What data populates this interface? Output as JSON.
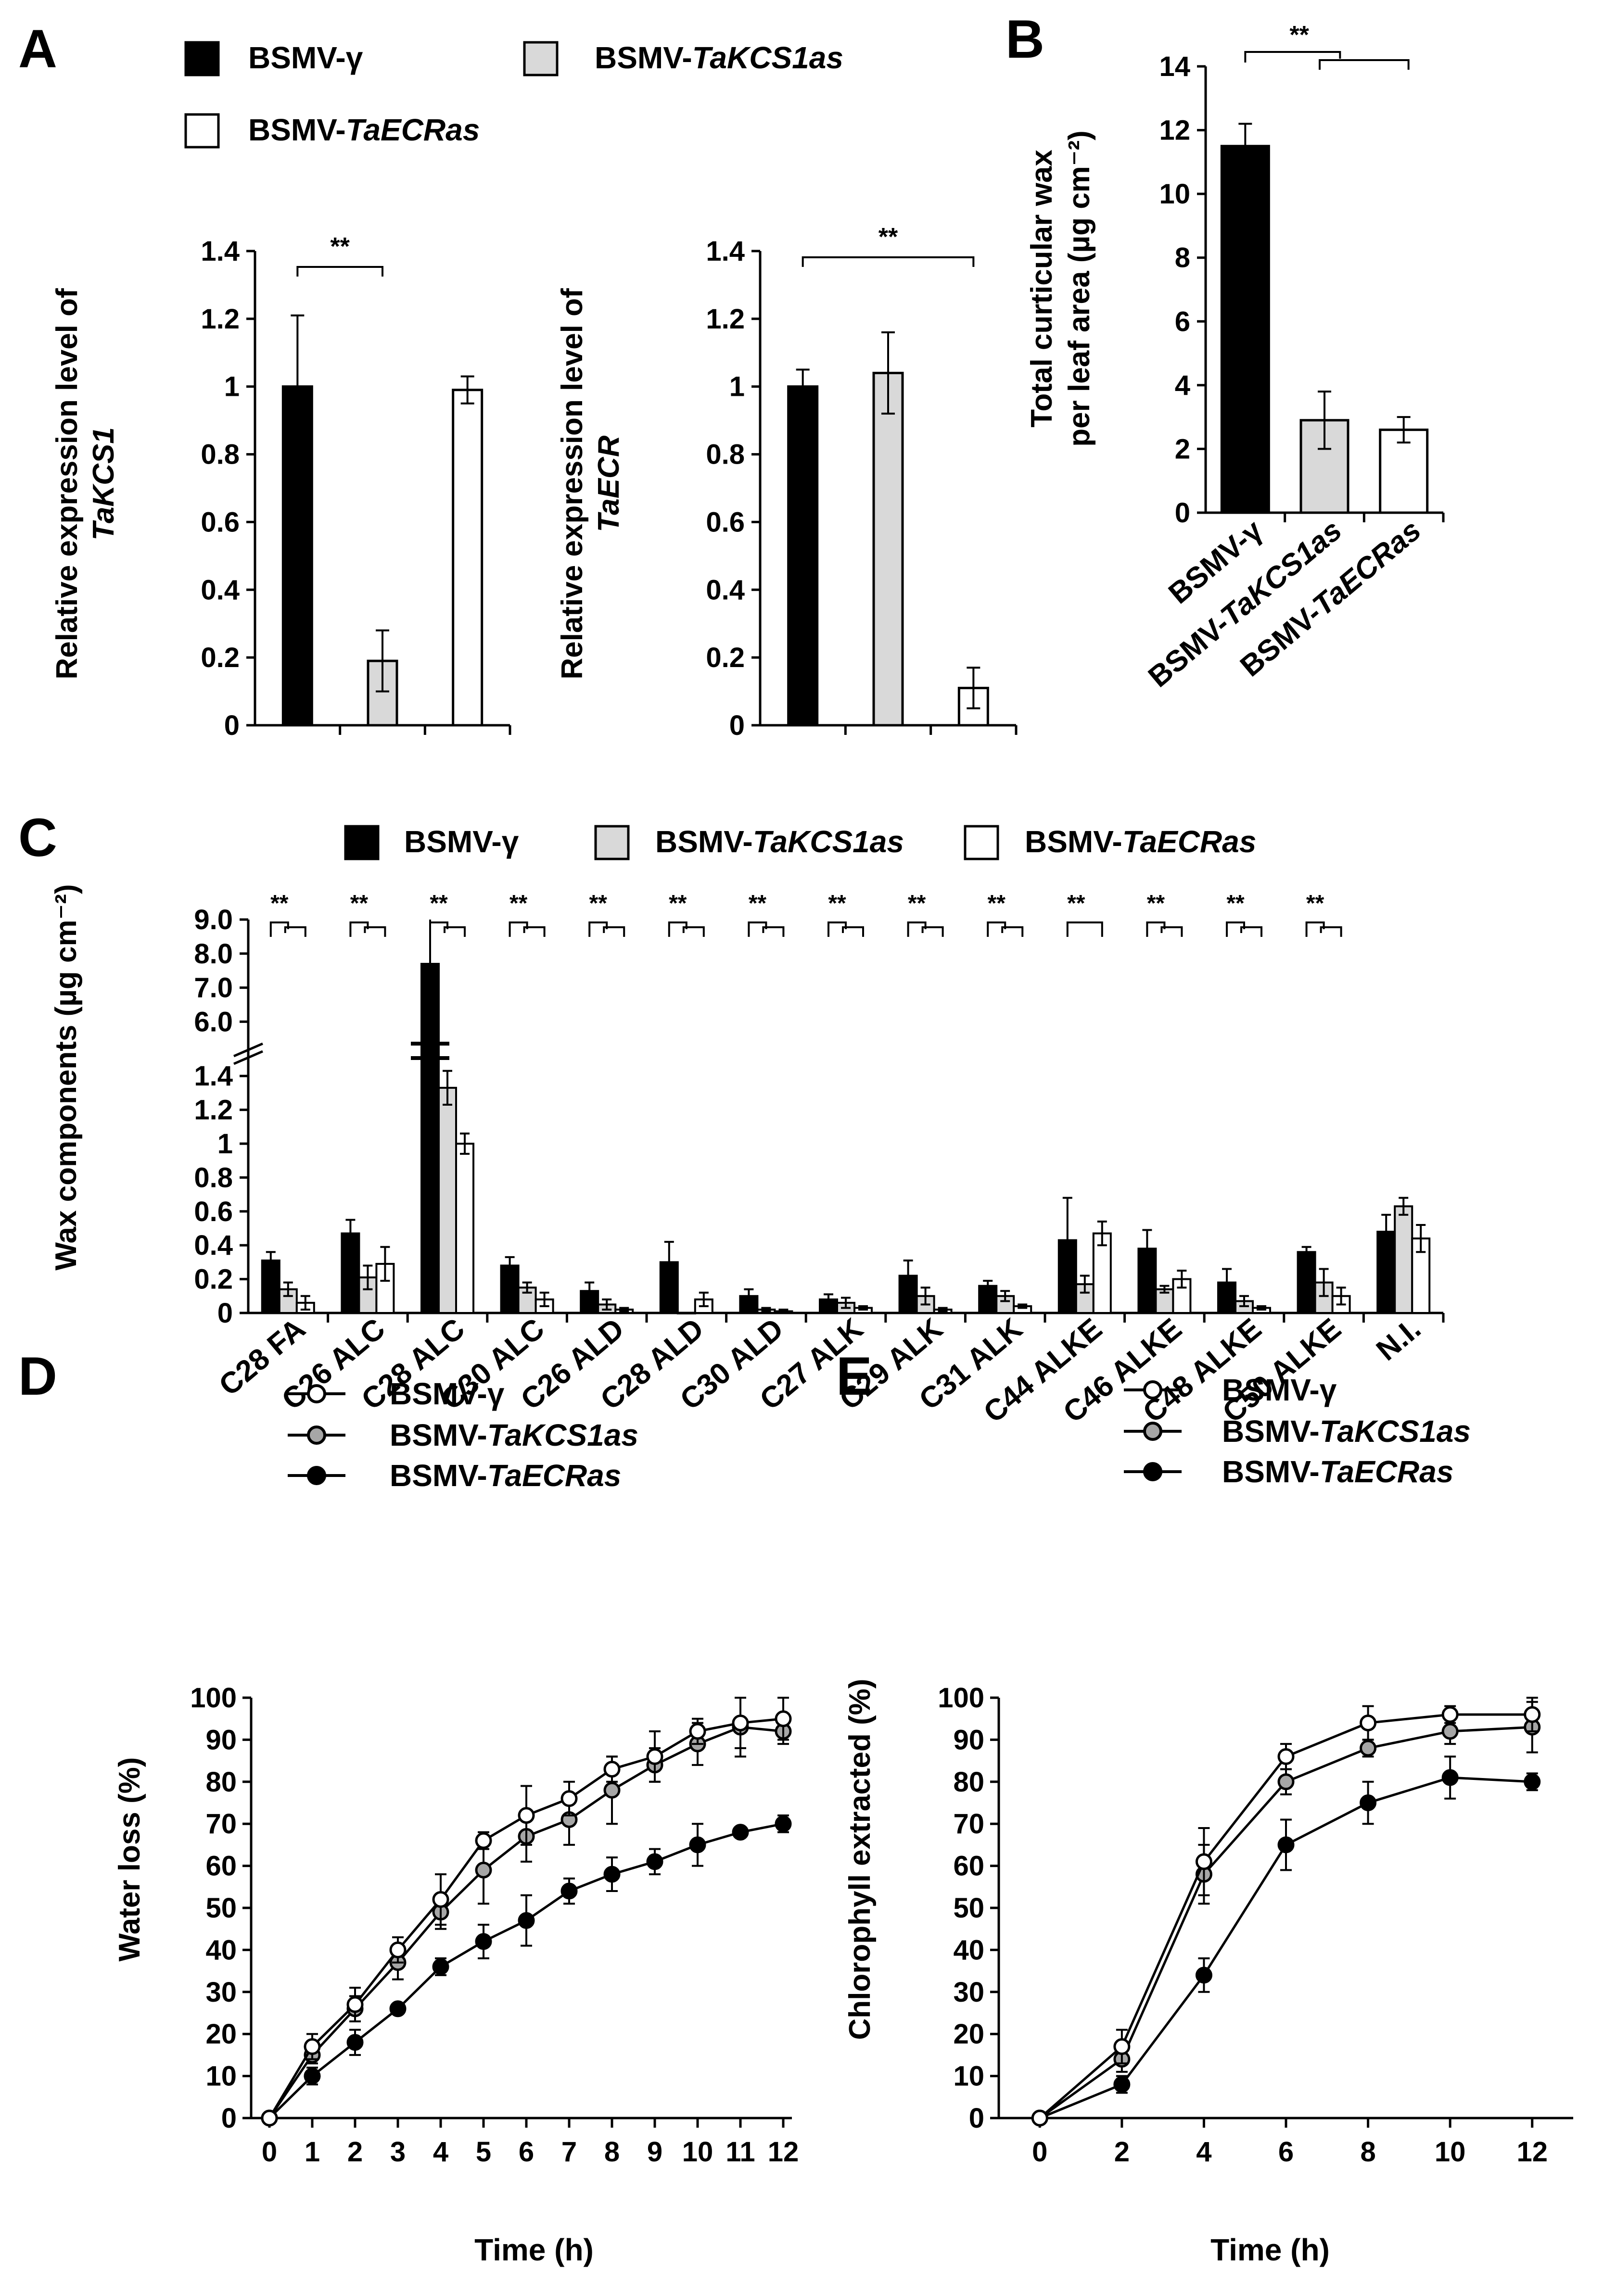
{
  "figure": {
    "panel_labels": {
      "A": "A",
      "B": "B",
      "C": "C",
      "D": "D",
      "E": "E"
    },
    "colors": {
      "black": "#000000",
      "gray": "#d9d9d9",
      "white": "#ffffff",
      "mid_gray": "#a6a6a6"
    },
    "legend_bar": {
      "gamma": {
        "prefix": "BSMV-",
        "name": "γ",
        "italic": false
      },
      "kcs": {
        "prefix": "BSMV-",
        "name": "TaKCS1as",
        "italic": true
      },
      "ecr": {
        "prefix": "BSMV-",
        "name": "TaECRas",
        "italic": true
      }
    },
    "significance": "**"
  },
  "chart_data": [
    {
      "id": "A1",
      "type": "bar",
      "title": "",
      "categories": [
        "BSMV-γ",
        "BSMV-TaKCS1as",
        "BSMV-TaECRas"
      ],
      "values": [
        1.0,
        0.19,
        0.99
      ],
      "errors": [
        0.21,
        0.09,
        0.04
      ],
      "ylabel_line1": "Relative expression level of",
      "ylabel_line2": "TaKCS1",
      "ylim": [
        0,
        1.4
      ],
      "yticks": [
        "0",
        "0.2",
        "0.4",
        "0.6",
        "0.8",
        "1",
        "1.2",
        "1.4"
      ],
      "significance": [
        {
          "from": 0,
          "to": 1,
          "label": "**"
        }
      ]
    },
    {
      "id": "A2",
      "type": "bar",
      "categories": [
        "BSMV-γ",
        "BSMV-TaKCS1as",
        "BSMV-TaECRas"
      ],
      "values": [
        1.0,
        1.04,
        0.11
      ],
      "errors": [
        0.05,
        0.12,
        0.06
      ],
      "ylabel_line1": "Relative expression level of",
      "ylabel_line2": "TaECR",
      "ylim": [
        0,
        1.4
      ],
      "yticks": [
        "0",
        "0.2",
        "0.4",
        "0.6",
        "0.8",
        "1",
        "1.2",
        "1.4"
      ],
      "significance": [
        {
          "from": 0,
          "to": 2,
          "label": "**"
        }
      ]
    },
    {
      "id": "B",
      "type": "bar",
      "categories": [
        "BSMV-γ",
        "BSMV-TaKCS1as",
        "BSMV-TaECRas"
      ],
      "xticklabels": [
        {
          "prefix": "BSMV-",
          "name": "γ",
          "italic": false
        },
        {
          "prefix": "BSMV-",
          "name": "TaKCS1as",
          "italic": true
        },
        {
          "prefix": "BSMV-",
          "name": "TaECRas",
          "italic": true
        }
      ],
      "values": [
        11.5,
        2.9,
        2.6
      ],
      "errors": [
        0.7,
        0.9,
        0.4
      ],
      "ylabel_line1": "Total curticular wax",
      "ylabel_line2": "per leaf area  (µg cm⁻²)",
      "ylim": [
        0,
        14
      ],
      "yticks": [
        "0",
        "2",
        "4",
        "6",
        "8",
        "10",
        "12",
        "14"
      ],
      "significance": "**"
    },
    {
      "id": "C",
      "type": "bar",
      "categories": [
        "C28 FA",
        "C26 ALC",
        "C28 ALC",
        "C30 ALC",
        "C26 ALD",
        "C28 ALD",
        "C30 ALD",
        "C27 ALK",
        "C29 ALK",
        "C31 ALK",
        "C44 ALKE",
        "C46 ALKE",
        "C48 ALKE",
        "C50 ALKE",
        "N.I."
      ],
      "series": [
        {
          "name": "BSMV-γ",
          "values": [
            0.31,
            0.47,
            7.7,
            0.28,
            0.13,
            0.3,
            0.1,
            0.08,
            0.22,
            0.16,
            0.43,
            0.38,
            0.18,
            0.36,
            0.48
          ],
          "errors": [
            0.05,
            0.08,
            1.3,
            0.05,
            0.05,
            0.12,
            0.04,
            0.03,
            0.09,
            0.03,
            0.25,
            0.11,
            0.08,
            0.03,
            0.1
          ]
        },
        {
          "name": "BSMV-TaKCS1as",
          "values": [
            0.14,
            0.21,
            1.33,
            0.15,
            0.05,
            0.0,
            0.02,
            0.06,
            0.1,
            0.1,
            0.17,
            0.14,
            0.07,
            0.18,
            0.63
          ]
        },
        {
          "name": "BSMV-TaECRas",
          "values": [
            0.06,
            0.29,
            1.0,
            0.08,
            0.02,
            0.08,
            0.01,
            0.03,
            0.02,
            0.04,
            0.47,
            0.2,
            0.03,
            0.1,
            0.44
          ]
        }
      ],
      "errors2": [
        0.04,
        0.07,
        0.1,
        0.03,
        0.03,
        0.0,
        0.01,
        0.03,
        0.05,
        0.03,
        0.05,
        0.02,
        0.03,
        0.08,
        0.05
      ],
      "errors3": [
        0.04,
        0.1,
        0.06,
        0.04,
        0.01,
        0.04,
        0.01,
        0.01,
        0.01,
        0.01,
        0.07,
        0.05,
        0.01,
        0.05,
        0.08
      ],
      "ylabel": "Wax components (µg cm⁻²)",
      "ylim_lower": [
        0,
        1.5
      ],
      "ylim_upper": [
        5.3,
        9.0
      ],
      "yticks_lower": [
        "0",
        "0.2",
        "0.4",
        "0.6",
        "0.8",
        "1",
        "1.2",
        "1.4"
      ],
      "yticks_upper": [
        "6.0",
        "7.0",
        "8.0",
        "9.0"
      ],
      "significance": [
        "**",
        "**",
        "**",
        "**",
        "**",
        "**",
        "**",
        "**",
        "**",
        "**",
        "**",
        "**",
        "**",
        "**",
        ""
      ],
      "significance_bracket": [
        true,
        true,
        true,
        true,
        true,
        true,
        true,
        true,
        true,
        true,
        false,
        true,
        true,
        true,
        false
      ]
    },
    {
      "id": "D",
      "type": "line",
      "xlabel": "Time (h)",
      "ylabel": "Water loss (%)",
      "x": [
        0,
        1,
        2,
        3,
        4,
        5,
        6,
        7,
        8,
        9,
        10,
        11,
        12
      ],
      "xticks": [
        "0",
        "1",
        "2",
        "3",
        "4",
        "5",
        "6",
        "7",
        "8",
        "9",
        "10",
        "11",
        "12"
      ],
      "xlim": [
        0,
        12
      ],
      "ylim": [
        0,
        100
      ],
      "yticks": [
        "0",
        "10",
        "20",
        "30",
        "40",
        "50",
        "60",
        "70",
        "80",
        "90",
        "100"
      ],
      "series": [
        {
          "name": "BSMV-γ",
          "values": [
            0,
            17,
            27,
            40,
            52,
            66,
            72,
            76,
            83,
            86,
            92,
            94,
            95
          ],
          "errors": [
            0,
            3,
            4,
            3,
            6,
            2,
            7,
            4,
            3,
            6,
            3,
            6,
            5
          ]
        },
        {
          "name": "BSMV-TaKCS1as",
          "values": [
            0,
            15,
            26,
            37,
            49,
            59,
            67,
            71,
            78,
            84,
            89,
            93,
            92
          ],
          "errors": [
            0,
            2,
            3,
            4,
            4,
            8,
            6,
            6,
            8,
            4,
            5,
            7,
            3
          ]
        },
        {
          "name": "BSMV-TaECRas",
          "values": [
            0,
            10,
            18,
            26,
            36,
            42,
            47,
            54,
            58,
            61,
            65,
            68,
            70
          ],
          "errors": [
            0,
            2,
            3,
            1,
            2,
            4,
            6,
            3,
            4,
            3,
            5,
            1,
            2
          ]
        }
      ]
    },
    {
      "id": "E",
      "type": "line",
      "xlabel": "Time (h)",
      "ylabel": "Chlorophyll extracted (%)",
      "x": [
        0,
        2,
        4,
        6,
        8,
        10,
        12
      ],
      "xticks": [
        "0",
        "2",
        "4",
        "6",
        "8",
        "10",
        "12"
      ],
      "xlim": [
        -1,
        13
      ],
      "ylim": [
        0,
        100
      ],
      "yticks": [
        "0",
        "10",
        "20",
        "30",
        "40",
        "50",
        "60",
        "70",
        "80",
        "90",
        "100"
      ],
      "series": [
        {
          "name": "BSMV-γ",
          "values": [
            0,
            17,
            61,
            86,
            94,
            96,
            96
          ],
          "errors": [
            0,
            4,
            8,
            3,
            4,
            2,
            4
          ]
        },
        {
          "name": "BSMV-TaKCS1as",
          "values": [
            0,
            14,
            58,
            80,
            88,
            92,
            93
          ],
          "errors": [
            0,
            3,
            7,
            3,
            2,
            3,
            6
          ]
        },
        {
          "name": "BSMV-TaECRas",
          "values": [
            0,
            8,
            34,
            65,
            75,
            81,
            80
          ],
          "errors": [
            0,
            2,
            4,
            6,
            5,
            5,
            2
          ]
        }
      ]
    }
  ]
}
